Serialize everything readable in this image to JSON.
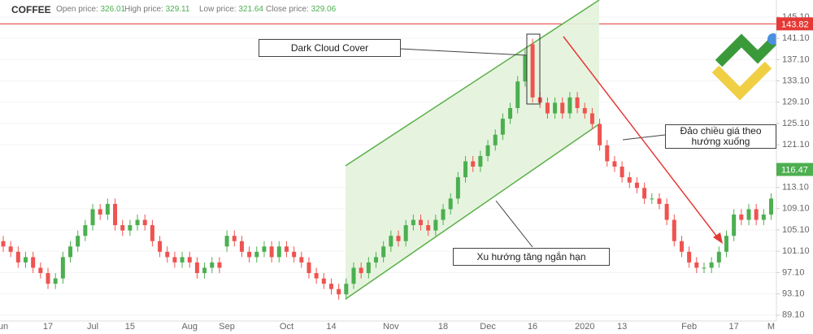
{
  "header": {
    "symbol": "COFFEE",
    "stats": [
      {
        "label": "Open price:",
        "value": "326.01"
      },
      {
        "label": "High price:",
        "value": "329.11"
      },
      {
        "label": "Low price:",
        "value": "321.64"
      },
      {
        "label": "Close price:",
        "value": "329.06"
      }
    ]
  },
  "chart_data": {
    "type": "candlestick",
    "categories": [
      "un",
      null,
      null,
      null,
      null,
      null,
      "17",
      null,
      null,
      null,
      null,
      null,
      "Jul",
      null,
      null,
      null,
      null,
      "15",
      null,
      null,
      null,
      null,
      null,
      null,
      null,
      "Aug",
      null,
      null,
      null,
      null,
      "Sep",
      null,
      null,
      null,
      null,
      null,
      null,
      null,
      "Oct",
      null,
      null,
      null,
      null,
      null,
      "14",
      null,
      null,
      null,
      null,
      null,
      null,
      null,
      "Nov",
      null,
      null,
      null,
      null,
      null,
      null,
      "18",
      null,
      null,
      null,
      null,
      null,
      "Dec",
      null,
      null,
      null,
      null,
      null,
      "16",
      null,
      null,
      null,
      null,
      null,
      null,
      "2020",
      null,
      null,
      null,
      null,
      "13",
      null,
      null,
      null,
      null,
      null,
      null,
      null,
      null,
      "Feb",
      null,
      null,
      null,
      null,
      null,
      "17",
      null,
      null,
      null,
      null,
      "M"
    ],
    "open": [
      103,
      102,
      101,
      99,
      100,
      98,
      97,
      95,
      96,
      100,
      102,
      104,
      106,
      109,
      108,
      110,
      106,
      105,
      106,
      107,
      106,
      103,
      101,
      100,
      99,
      100,
      99,
      97,
      98,
      99,
      102,
      104,
      103,
      101,
      100,
      101,
      102,
      100,
      102,
      101,
      100,
      99,
      97,
      96,
      95,
      94,
      93,
      95,
      98,
      97,
      99,
      100,
      102,
      104,
      103,
      106,
      107,
      106,
      105,
      107,
      109,
      111,
      115,
      118,
      117,
      119,
      121,
      123,
      126,
      128,
      133,
      140,
      130,
      129,
      127,
      129,
      127,
      130,
      128,
      127,
      125,
      121,
      118,
      117,
      115,
      114,
      113,
      111,
      111,
      110,
      107,
      103,
      101,
      99,
      98,
      98,
      99,
      101,
      104,
      108,
      107,
      109,
      107,
      108
    ],
    "high": [
      104,
      103,
      102,
      101,
      101,
      99,
      98,
      97,
      101,
      103,
      105,
      107,
      110,
      110,
      111,
      111,
      107,
      107,
      108,
      108,
      107,
      104,
      102,
      101,
      101,
      101,
      100,
      99,
      100,
      100,
      105,
      105,
      104,
      102,
      102,
      103,
      103,
      103,
      103,
      102,
      101,
      100,
      98,
      97,
      96,
      95,
      96,
      99,
      99,
      100,
      101,
      103,
      105,
      105,
      107,
      108,
      108,
      107,
      108,
      110,
      112,
      116,
      119,
      119,
      120,
      122,
      124,
      127,
      129,
      134,
      139,
      141,
      131,
      130,
      130,
      130,
      131,
      131,
      129,
      128,
      126,
      122,
      119,
      118,
      116,
      115,
      114,
      112,
      112,
      111,
      108,
      104,
      102,
      100,
      99,
      100,
      102,
      105,
      109,
      109,
      110,
      110,
      109,
      112
    ],
    "low": [
      101,
      100,
      98,
      98,
      97,
      96,
      94,
      94,
      95,
      99,
      101,
      103,
      105,
      107,
      107,
      105,
      104,
      104,
      105,
      105,
      102,
      100,
      99,
      98,
      98,
      98,
      96,
      96,
      97,
      97,
      101,
      102,
      100,
      99,
      99,
      100,
      99,
      99,
      100,
      99,
      98,
      96,
      95,
      94,
      93,
      92,
      92,
      94,
      96,
      96,
      98,
      99,
      101,
      102,
      102,
      105,
      105,
      104,
      104,
      106,
      108,
      110,
      114,
      116,
      116,
      118,
      120,
      122,
      125,
      127,
      132,
      129,
      128,
      126,
      126,
      126,
      126,
      127,
      126,
      124,
      120,
      117,
      116,
      114,
      113,
      112,
      110,
      110,
      109,
      106,
      102,
      100,
      98,
      97,
      97,
      97,
      98,
      100,
      103,
      106,
      106,
      106,
      106,
      107
    ],
    "close": [
      102,
      101,
      99,
      100,
      98,
      97,
      95,
      96,
      100,
      102,
      104,
      106,
      109,
      108,
      110,
      106,
      105,
      106,
      107,
      106,
      103,
      101,
      100,
      99,
      100,
      99,
      97,
      98,
      99,
      98,
      104,
      103,
      101,
      100,
      101,
      102,
      100,
      102,
      101,
      100,
      99,
      97,
      96,
      95,
      94,
      93,
      95,
      98,
      97,
      99,
      100,
      102,
      104,
      103,
      106,
      107,
      106,
      105,
      107,
      109,
      111,
      115,
      118,
      117,
      119,
      121,
      123,
      126,
      128,
      133,
      138,
      130,
      129,
      127,
      129,
      127,
      130,
      128,
      127,
      125,
      121,
      118,
      117,
      115,
      114,
      113,
      111,
      111,
      110,
      107,
      103,
      101,
      99,
      98,
      98,
      99,
      101,
      104,
      108,
      107,
      109,
      107,
      108,
      111
    ],
    "up_color": "#4caf50",
    "down_color": "#ef5350",
    "ylim": [
      88.0,
      148.3
    ],
    "yticks": [
      {
        "value": 89.1,
        "label": "89.10"
      },
      {
        "value": 93.1,
        "label": "93.10"
      },
      {
        "value": 97.1,
        "label": "97.10"
      },
      {
        "value": 101.1,
        "label": "101.10"
      },
      {
        "value": 105.1,
        "label": "105.10"
      },
      {
        "value": 109.1,
        "label": "109.10"
      },
      {
        "value": 113.1,
        "label": "113.10"
      },
      {
        "value": 121.1,
        "label": "121.10"
      },
      {
        "value": 125.1,
        "label": "125.10"
      },
      {
        "value": 129.1,
        "label": "129.10"
      },
      {
        "value": 133.1,
        "label": "133.10"
      },
      {
        "value": 137.1,
        "label": "137.10"
      },
      {
        "value": 141.1,
        "label": "141.10"
      },
      {
        "value": 145.1,
        "label": "145.10"
      }
    ],
    "grid": true,
    "price_lines": [
      {
        "value": 143.82,
        "color": "#e53935",
        "line": true
      },
      {
        "value": 116.47,
        "color": "#4caf50",
        "line": false
      }
    ],
    "annotations": [
      "Dark Cloud Cover",
      "Xu hướng tăng ngắn hạn",
      "Đảo chiều giá theo hướng xuống"
    ]
  }
}
